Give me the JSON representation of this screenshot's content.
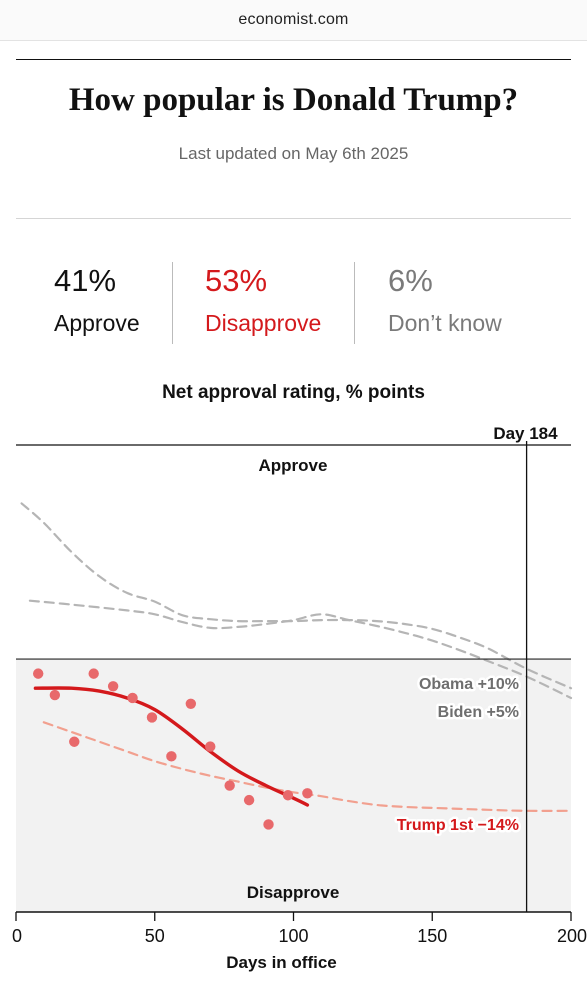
{
  "browser": {
    "domain": "economist.com"
  },
  "header": {
    "title": "How popular is Donald Trump?",
    "updated": "Last updated on May 6th 2025"
  },
  "stats": [
    {
      "pct": "41%",
      "label": "Approve",
      "color": "#111111"
    },
    {
      "pct": "53%",
      "label": "Disapprove",
      "color": "#d4191c"
    },
    {
      "pct": "6%",
      "label": "Don’t know",
      "color": "#7a7a7a"
    }
  ],
  "chart_data": {
    "type": "line",
    "title": "Net approval rating, % points",
    "xlabel": "Days in office",
    "ylabel": "",
    "xlim": [
      0,
      200
    ],
    "ylim": [
      -26,
      22
    ],
    "xticks": [
      0,
      50,
      100,
      150,
      200
    ],
    "xtick_labels": [
      "0",
      "50",
      "100",
      "150",
      "200"
    ],
    "zone_labels": {
      "approve": "Approve",
      "disapprove": "Disapprove"
    },
    "marker": {
      "x": 184,
      "label": "Day 184"
    },
    "colors": {
      "trump": "#d4191c",
      "trump_points": "#e8696b",
      "trump_first": "#f2a08f",
      "comparison": "#b5b5b5"
    },
    "series": [
      {
        "name": "Obama",
        "style": "dashed-grey",
        "x": [
          2,
          10,
          20,
          30,
          40,
          50,
          60,
          70,
          80,
          90,
          100,
          110,
          120,
          130,
          140,
          150,
          160,
          170,
          184,
          200
        ],
        "y": [
          16,
          14,
          11,
          8.5,
          6.8,
          5.9,
          4.5,
          4.1,
          3.9,
          3.9,
          3.9,
          4.0,
          4.0,
          3.9,
          3.6,
          3.1,
          2.2,
          1.1,
          -1.0,
          -3.0
        ],
        "annotation": "Obama +10%"
      },
      {
        "name": "Biden",
        "style": "dashed-grey",
        "x": [
          5,
          20,
          40,
          50,
          60,
          70,
          80,
          90,
          100,
          110,
          120,
          130,
          140,
          150,
          160,
          170,
          184,
          200
        ],
        "y": [
          6.0,
          5.6,
          5.0,
          4.6,
          3.8,
          3.2,
          3.3,
          3.6,
          4.0,
          4.6,
          4.0,
          3.4,
          2.7,
          1.9,
          0.9,
          -0.2,
          -1.8,
          -4.0
        ],
        "annotation": "Biden +5%"
      },
      {
        "name": "Trump 1st",
        "style": "dashed-salmon",
        "x": [
          10,
          20,
          30,
          40,
          50,
          60,
          70,
          80,
          90,
          100,
          110,
          120,
          130,
          140,
          150,
          160,
          170,
          184,
          200
        ],
        "y": [
          -6.5,
          -7.5,
          -8.5,
          -9.5,
          -10.5,
          -11.3,
          -12.0,
          -12.6,
          -13.2,
          -13.7,
          -14.1,
          -14.6,
          -15.0,
          -15.2,
          -15.3,
          -15.4,
          -15.5,
          -15.6,
          -15.6
        ],
        "annotation": "Trump 1st  −14%"
      },
      {
        "name": "Trump",
        "style": "solid-red",
        "x": [
          7,
          20,
          30,
          40,
          50,
          60,
          70,
          80,
          90,
          100,
          105
        ],
        "y": [
          -3.0,
          -3.0,
          -3.3,
          -4.0,
          -5.2,
          -7.2,
          -9.5,
          -11.5,
          -13.0,
          -14.3,
          -15.0
        ],
        "points": [
          [
            8,
            -1.5
          ],
          [
            14,
            -3.7
          ],
          [
            21,
            -8.5
          ],
          [
            28,
            -1.5
          ],
          [
            35,
            -2.8
          ],
          [
            42,
            -4.0
          ],
          [
            49,
            -6.0
          ],
          [
            56,
            -10.0
          ],
          [
            63,
            -4.6
          ],
          [
            70,
            -9.0
          ],
          [
            77,
            -13.0
          ],
          [
            84,
            -14.5
          ],
          [
            91,
            -17.0
          ],
          [
            98,
            -14.0
          ],
          [
            105,
            -13.8
          ]
        ]
      }
    ]
  }
}
